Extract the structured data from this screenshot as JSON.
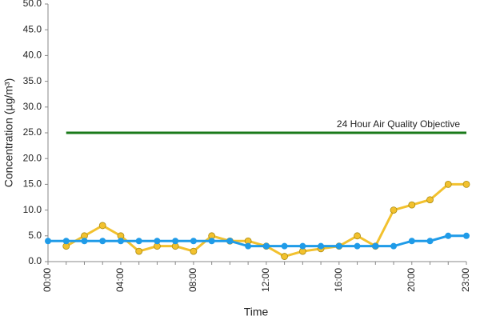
{
  "chart_data": {
    "type": "line",
    "x_label": "Time",
    "y_label": "Concentration (µg/m³)",
    "categories": [
      "00:00",
      null,
      null,
      null,
      "04:00",
      null,
      null,
      null,
      "08:00",
      null,
      null,
      null,
      "12:00",
      null,
      null,
      null,
      "16:00",
      null,
      null,
      null,
      "20:00",
      null,
      null,
      "23:00"
    ],
    "series": [
      {
        "color": "#f2c12e",
        "values": [
          null,
          3,
          5,
          7,
          5,
          2,
          3,
          3,
          2,
          5,
          4,
          4,
          3,
          1,
          2,
          2.5,
          3,
          5,
          3,
          10,
          11,
          12,
          15,
          15
        ]
      },
      {
        "color": "#1f9be8",
        "values": [
          4,
          4,
          4,
          4,
          4,
          4,
          4,
          4,
          4,
          4,
          4,
          3,
          3,
          3,
          3,
          3,
          3,
          3,
          3,
          3,
          4,
          4,
          5,
          5
        ]
      },
      {
        "name": "24 Hour Air Quality Objective",
        "color": "#1a7a1a",
        "markers": false,
        "values": [
          null,
          25,
          25,
          25,
          25,
          25,
          25,
          25,
          25,
          25,
          25,
          25,
          25,
          25,
          25,
          25,
          25,
          25,
          25,
          25,
          25,
          25,
          25,
          25
        ]
      }
    ],
    "ylim": [
      0,
      50
    ],
    "yticks": [
      {
        "value": 0,
        "label": "0.0"
      },
      {
        "value": 5,
        "label": "5.0"
      },
      {
        "value": 10,
        "label": "10.0"
      },
      {
        "value": 15,
        "label": "15.0"
      },
      {
        "value": 20,
        "label": "20.0"
      },
      {
        "value": 25,
        "label": "25.0"
      },
      {
        "value": 30,
        "label": "30.0"
      },
      {
        "value": 35,
        "label": "35.0"
      },
      {
        "value": 40,
        "label": "40.0"
      },
      {
        "value": 45,
        "label": "45.0"
      },
      {
        "value": 50,
        "label": "50.0"
      }
    ],
    "grid": false
  }
}
